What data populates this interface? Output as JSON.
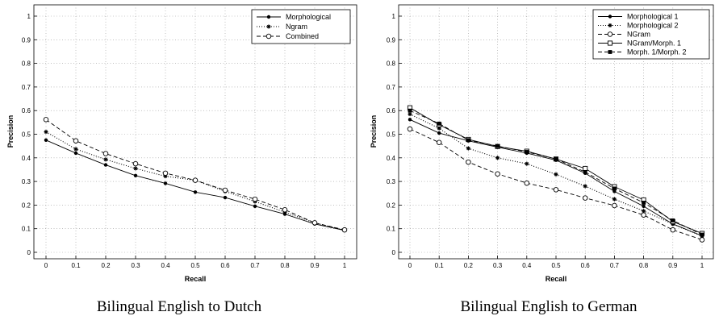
{
  "chart_data": [
    {
      "type": "line",
      "caption": "Bilingual English to Dutch",
      "xlabel": "Recall",
      "ylabel": "Precision",
      "xlim": [
        0,
        1
      ],
      "ylim": [
        0,
        1
      ],
      "grid": true,
      "legend_position": "top-right",
      "x": [
        0,
        0.1,
        0.2,
        0.3,
        0.4,
        0.5,
        0.6,
        0.7,
        0.8,
        0.9,
        1
      ],
      "xticks": [
        "0",
        "0.1",
        "0.2",
        "0.3",
        "0.4",
        "0.5",
        "0.6",
        "0.7",
        "0.8",
        "0.9",
        "1"
      ],
      "yticks": [
        "0",
        "0.1",
        "0.2",
        "0.3",
        "0.4",
        "0.5",
        "0.6",
        "0.7",
        "0.8",
        "0.9",
        "1"
      ],
      "series": [
        {
          "name": "Morphological",
          "values": [
            0.475,
            0.42,
            0.37,
            0.325,
            0.292,
            0.255,
            0.232,
            0.195,
            0.162,
            0.12,
            0.093
          ],
          "line": "solid",
          "marker": "dot"
        },
        {
          "name": "Ngram",
          "values": [
            0.51,
            0.437,
            0.393,
            0.355,
            0.322,
            0.305,
            0.258,
            0.215,
            0.17,
            0.125,
            0.093
          ],
          "line": "dotted",
          "marker": "star"
        },
        {
          "name": "Combined",
          "values": [
            0.562,
            0.472,
            0.418,
            0.375,
            0.335,
            0.305,
            0.263,
            0.225,
            0.18,
            0.125,
            0.095
          ],
          "line": "dashed",
          "marker": "circle"
        }
      ]
    },
    {
      "type": "line",
      "caption": "Bilingual English to German",
      "xlabel": "Recall",
      "ylabel": "Precision",
      "xlim": [
        0,
        1
      ],
      "ylim": [
        0,
        1
      ],
      "grid": true,
      "legend_position": "top-right",
      "x": [
        0,
        0.1,
        0.2,
        0.3,
        0.4,
        0.5,
        0.6,
        0.7,
        0.8,
        0.9,
        1
      ],
      "xticks": [
        "0",
        "0.1",
        "0.2",
        "0.3",
        "0.4",
        "0.5",
        "0.6",
        "0.7",
        "0.8",
        "0.9",
        "1"
      ],
      "yticks": [
        "0",
        "0.1",
        "0.2",
        "0.3",
        "0.4",
        "0.5",
        "0.6",
        "0.7",
        "0.8",
        "0.9",
        "1"
      ],
      "series": [
        {
          "name": "Morphological 1",
          "values": [
            0.562,
            0.505,
            0.472,
            0.445,
            0.42,
            0.39,
            0.335,
            0.258,
            0.195,
            0.12,
            0.07
          ],
          "line": "solid",
          "marker": "dot"
        },
        {
          "name": "Morphological 2",
          "values": [
            0.585,
            0.525,
            0.44,
            0.4,
            0.375,
            0.33,
            0.28,
            0.225,
            0.175,
            0.12,
            0.068
          ],
          "line": "dotted",
          "marker": "star"
        },
        {
          "name": "NGram",
          "values": [
            0.522,
            0.465,
            0.382,
            0.332,
            0.293,
            0.265,
            0.23,
            0.198,
            0.158,
            0.095,
            0.053
          ],
          "line": "dashed",
          "marker": "circle"
        },
        {
          "name": "NGram/Morph. 1",
          "values": [
            0.612,
            0.54,
            0.478,
            0.448,
            0.428,
            0.395,
            0.355,
            0.278,
            0.222,
            0.13,
            0.08
          ],
          "line": "solid",
          "marker": "square"
        },
        {
          "name": "Morph. 1/Morph. 2",
          "values": [
            0.6,
            0.545,
            0.475,
            0.45,
            0.425,
            0.395,
            0.34,
            0.27,
            0.21,
            0.135,
            0.075
          ],
          "line": "dashed",
          "marker": "filled-square"
        }
      ]
    }
  ]
}
